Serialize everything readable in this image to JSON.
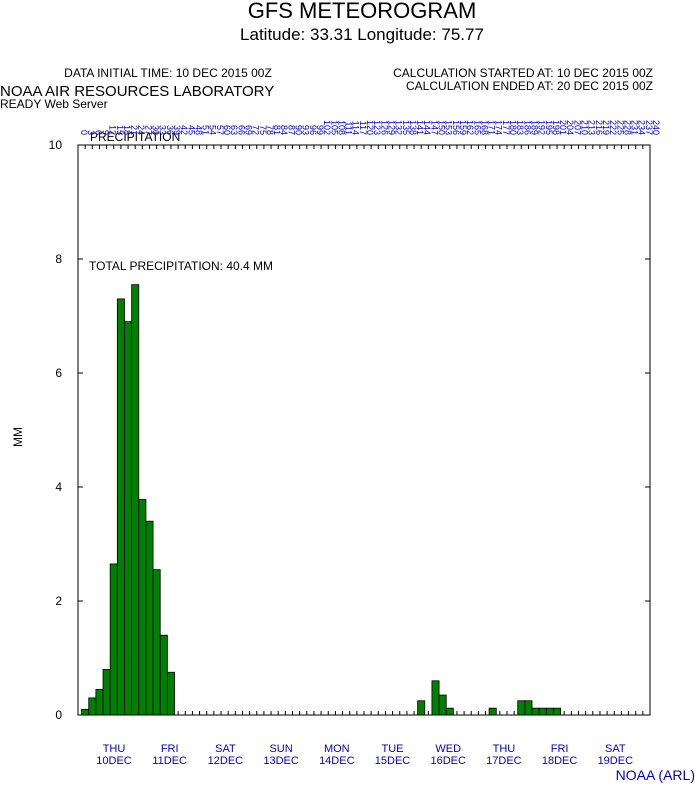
{
  "chart_data": {
    "type": "bar",
    "title": "GFS METEOROGRAM",
    "subtitle": "Latitude: 33.31 Longitude:  75.77",
    "data_initial_time": "DATA INITIAL TIME: 10 DEC 2015 00Z",
    "calc_started": "CALCULATION STARTED AT: 10 DEC 2015 00Z",
    "calc_ended": "CALCULATION ENDED AT: 20 DEC 2015 00Z",
    "organization": "NOAA AIR RESOURCES LABORATORY",
    "server": "READY Web Server",
    "panel_label": "PRECIPITATION",
    "annotation": "TOTAL PRECIPITATION:  40.4 MM",
    "ylabel": "MM",
    "credit": "NOAA (ARL)",
    "x": [
      0,
      3,
      6,
      9,
      12,
      15,
      18,
      21,
      24,
      27,
      30,
      33,
      36,
      39,
      42,
      45,
      48,
      51,
      54,
      57,
      60,
      63,
      66,
      69,
      72,
      75,
      78,
      81,
      84,
      87,
      90,
      93,
      96,
      99,
      102,
      105,
      108,
      111,
      114,
      117,
      120,
      123,
      126,
      129,
      132,
      135,
      138,
      141,
      144,
      147,
      150,
      153,
      156,
      159,
      162,
      165,
      168,
      171,
      174,
      177,
      180,
      183,
      186,
      189,
      192,
      195,
      198,
      201,
      204,
      207,
      210,
      213,
      216,
      219,
      222,
      225,
      228,
      231,
      234,
      237,
      240
    ],
    "values": [
      0,
      0.1,
      0.3,
      0.45,
      0.8,
      2.65,
      7.3,
      6.9,
      7.55,
      3.78,
      3.4,
      2.55,
      1.4,
      0.75,
      0,
      0,
      0,
      0,
      0,
      0,
      0,
      0,
      0,
      0,
      0,
      0,
      0,
      0,
      0,
      0,
      0,
      0,
      0,
      0,
      0,
      0,
      0,
      0,
      0,
      0,
      0,
      0,
      0,
      0,
      0,
      0,
      0,
      0,
      0.25,
      0,
      0.6,
      0.35,
      0.12,
      0,
      0,
      0,
      0,
      0,
      0.12,
      0,
      0,
      0,
      0.25,
      0.25,
      0.12,
      0.12,
      0.12,
      0.12,
      0,
      0,
      0,
      0,
      0,
      0,
      0,
      0,
      0,
      0,
      0,
      0,
      0
    ],
    "color": "#008000",
    "xlim": [
      0,
      240
    ],
    "ylim": [
      0,
      10
    ],
    "yticks": [
      0,
      2,
      4,
      6,
      8,
      10
    ],
    "day_labels": [
      [
        "THU",
        "10DEC"
      ],
      [
        "FRI",
        "11DEC"
      ],
      [
        "SAT",
        "12DEC"
      ],
      [
        "SUN",
        "13DEC"
      ],
      [
        "MON",
        "14DEC"
      ],
      [
        "TUE",
        "15DEC"
      ],
      [
        "WED",
        "16DEC"
      ],
      [
        "THU",
        "17DEC"
      ],
      [
        "FRI",
        "18DEC"
      ],
      [
        "SAT",
        "19DEC"
      ]
    ]
  }
}
